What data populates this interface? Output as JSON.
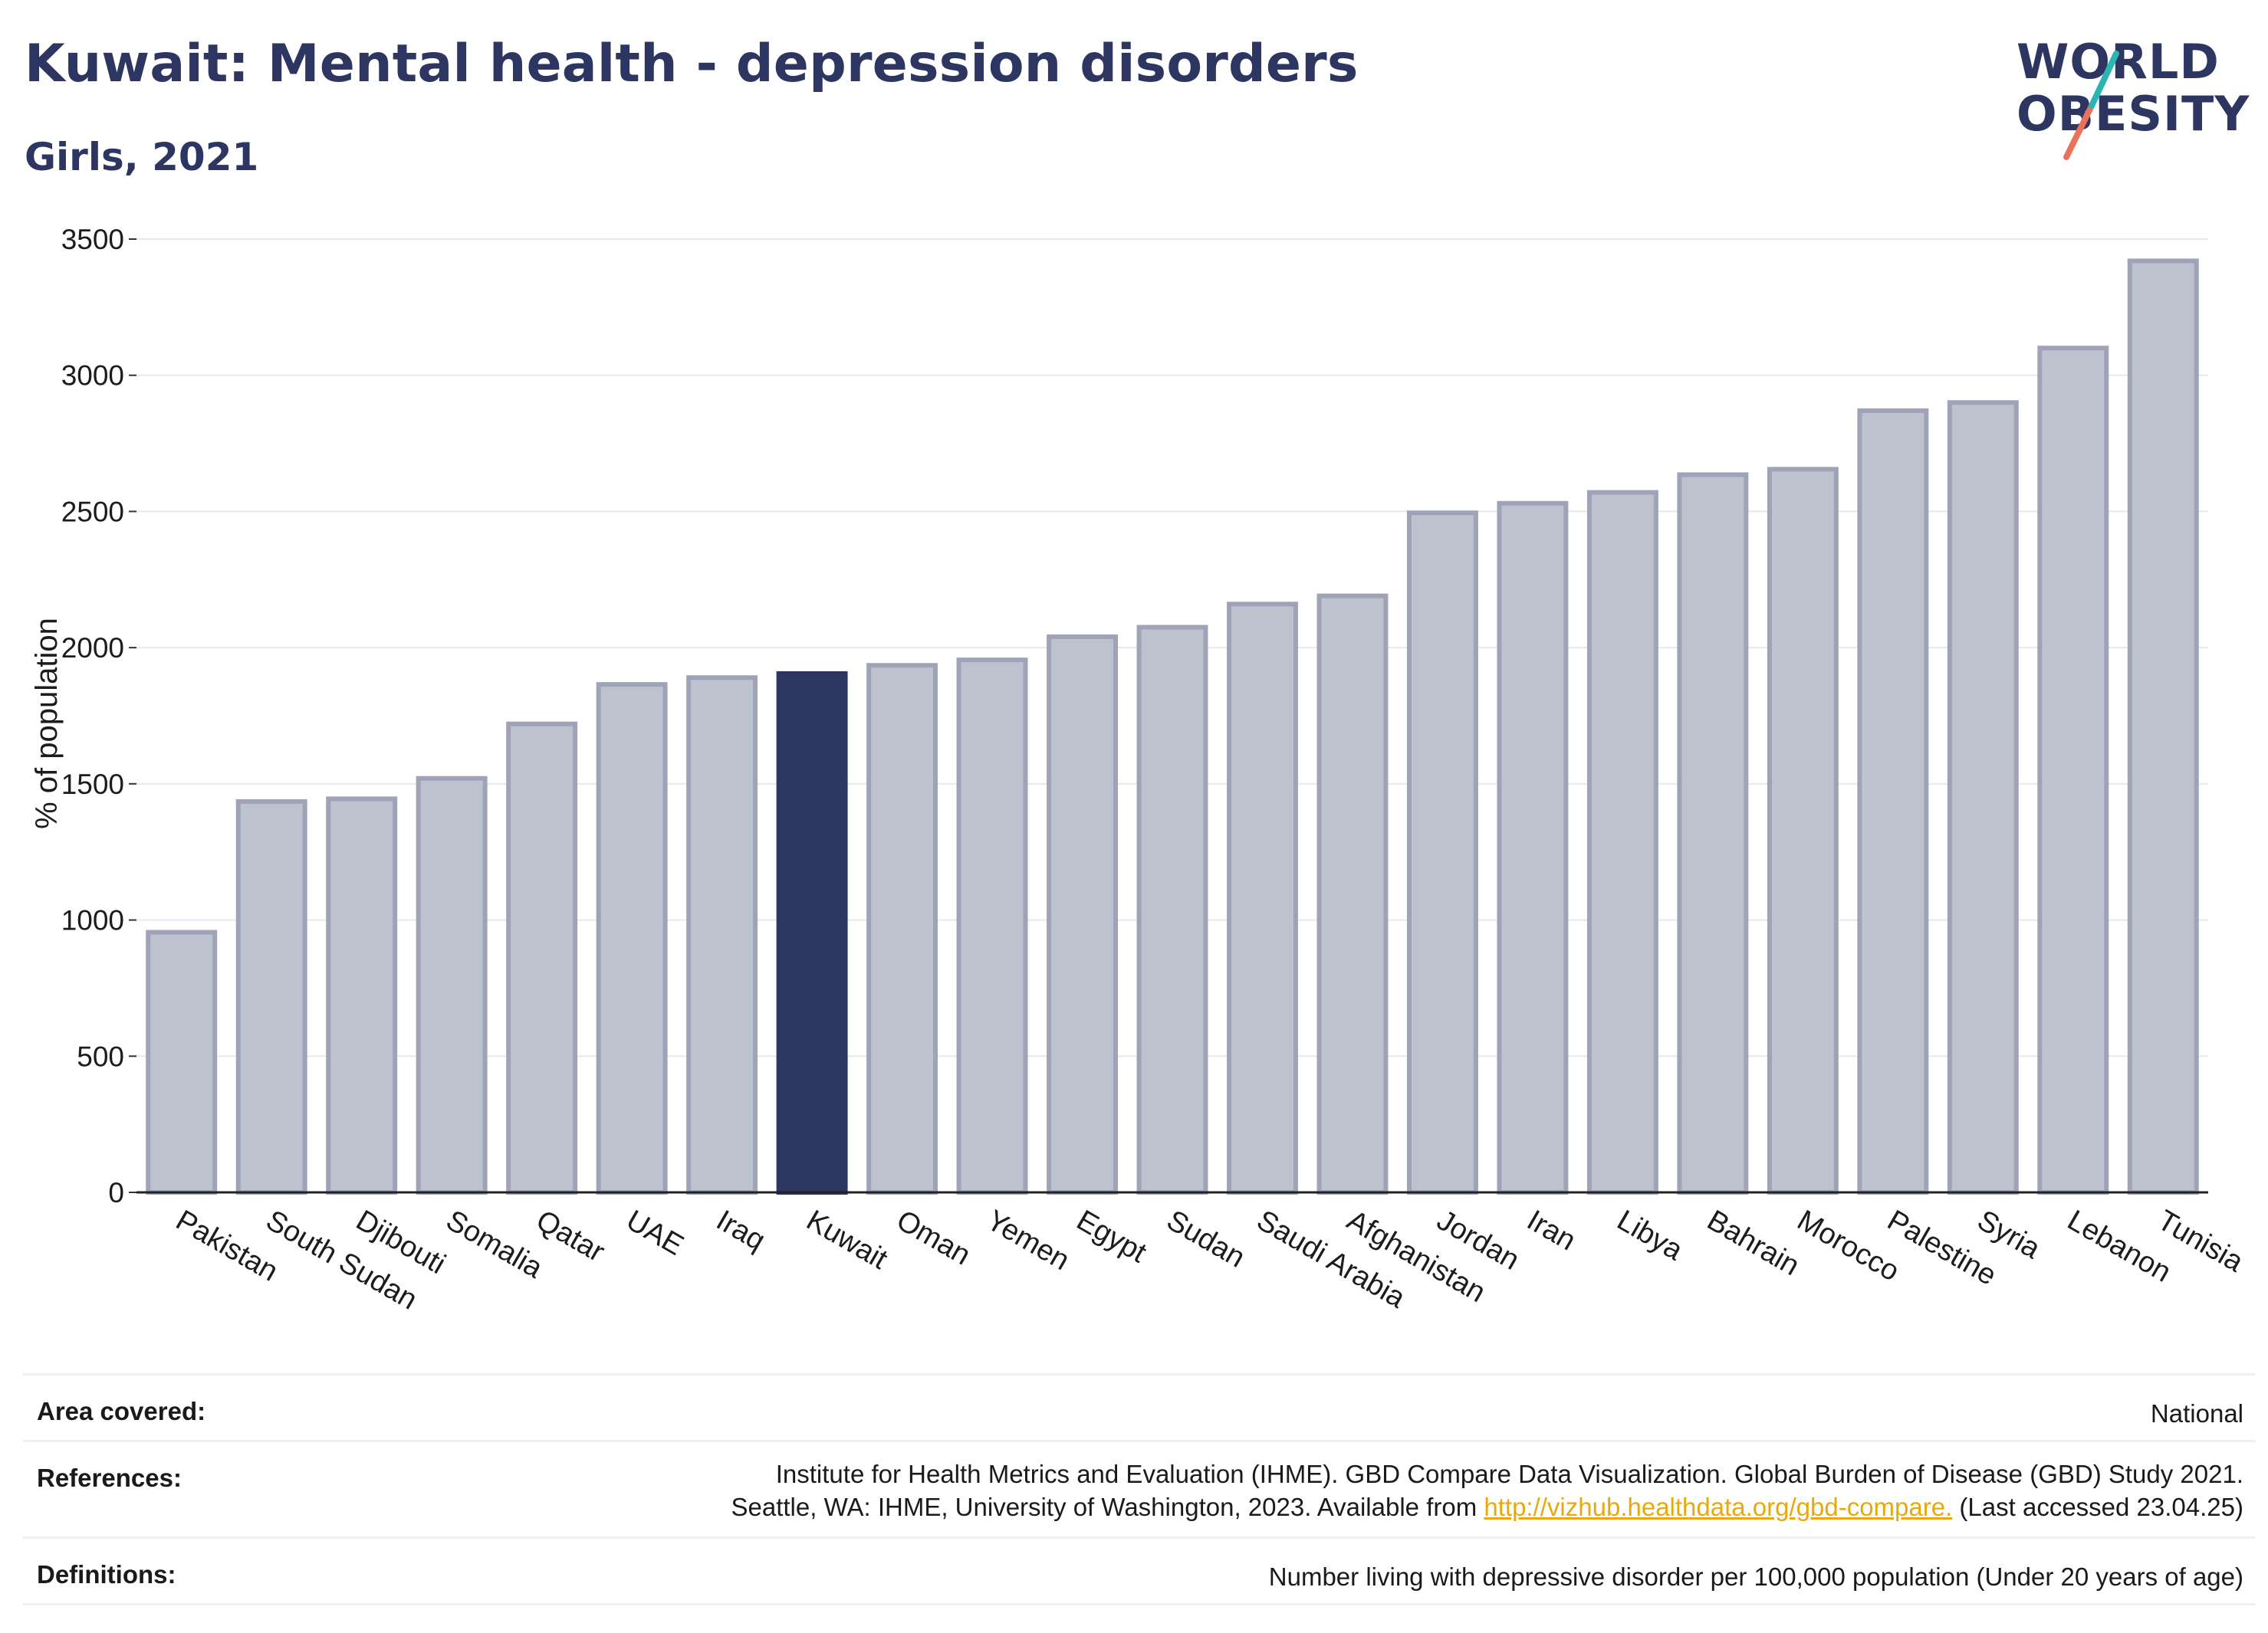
{
  "title": "Kuwait: Mental health - depression disorders",
  "subtitle": "Girls, 2021",
  "logo": {
    "line1": "WORLD",
    "line2": "OBESITY"
  },
  "colors": {
    "highlight": "#2d3561",
    "bar_fill": "#bec1ce",
    "bar_stroke": "#9ea3b8",
    "title": "#2d3561",
    "link": "#e8a90f",
    "logo_teal": "#2bb5b0",
    "logo_coral": "#e8735a"
  },
  "chart_data": {
    "type": "bar",
    "ylabel": "% of population",
    "xlabel": "",
    "ylim": [
      0,
      3500
    ],
    "yticks": [
      0,
      500,
      1000,
      1500,
      2000,
      2500,
      3000,
      3500
    ],
    "grid": true,
    "highlight": "Kuwait",
    "categories": [
      "Pakistan",
      "South Sudan",
      "Djibouti",
      "Somalia",
      "Qatar",
      "UAE",
      "Iraq",
      "Kuwait",
      "Oman",
      "Yemen",
      "Egypt",
      "Sudan",
      "Saudi Arabia",
      "Afghanistan",
      "Jordan",
      "Iran",
      "Libya",
      "Bahrain",
      "Morocco",
      "Palestine",
      "Syria",
      "Lebanon",
      "Tunisia"
    ],
    "values": [
      955,
      1435,
      1445,
      1520,
      1720,
      1865,
      1890,
      1905,
      1935,
      1955,
      2040,
      2075,
      2160,
      2190,
      2495,
      2530,
      2570,
      2635,
      2655,
      2870,
      2900,
      3100,
      3420
    ]
  },
  "footer": {
    "area_label": "Area covered:",
    "area_value": "National",
    "references_label": "References:",
    "references_line1": "Institute for Health Metrics and Evaluation (IHME). GBD Compare Data Visualization. Global Burden of Disease (GBD) Study 2021.",
    "references_line2_pre": "Seattle, WA: IHME, University of Washington, 2023. Available from ",
    "references_link": "http://vizhub.healthdata.org/gbd-compare.",
    "references_line2_post": " (Last accessed 23.04.25)",
    "definitions_label": "Definitions:",
    "definitions_value": "Number living with depressive disorder per 100,000 population (Under 20 years of age)"
  }
}
